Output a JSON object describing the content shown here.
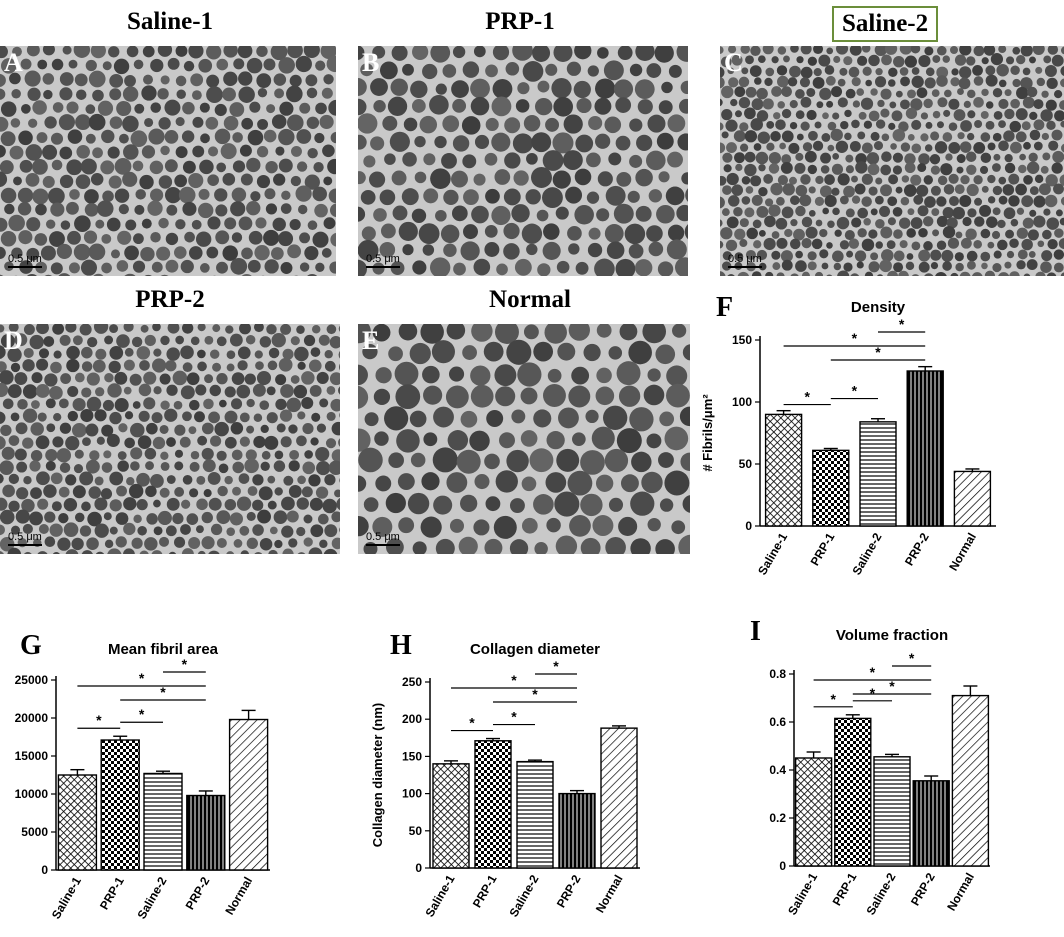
{
  "micrographs": [
    {
      "id": "A",
      "title": "Saline-1",
      "scale": "0.5 μm",
      "boxed": false
    },
    {
      "id": "B",
      "title": "PRP-1",
      "scale": "0.5 μm",
      "boxed": false
    },
    {
      "id": "C",
      "title": "Saline-2",
      "scale": "0.5 μm",
      "boxed": true
    },
    {
      "id": "D",
      "title": "PRP-2",
      "scale": "0.5 μm",
      "boxed": false
    },
    {
      "id": "E",
      "title": "Normal",
      "scale": "0.5 μm",
      "boxed": false
    }
  ],
  "chart_data": [
    {
      "panel": "F",
      "type": "bar",
      "title": "Density",
      "ylabel": "# Fibrils/μm²",
      "xlabel": "",
      "categories": [
        "Saline-1",
        "PRP-1",
        "Saline-2",
        "PRP-2",
        "Normal"
      ],
      "values": [
        90,
        61,
        84,
        125,
        44
      ],
      "errors": [
        3,
        1.5,
        2.5,
        3.5,
        2
      ],
      "ylim": [
        0,
        150
      ],
      "yticks": [
        0,
        50,
        100,
        150
      ],
      "significance": [
        {
          "from": "Saline-1",
          "to": "PRP-1",
          "label": "*"
        },
        {
          "from": "PRP-1",
          "to": "Saline-2",
          "label": "*"
        },
        {
          "from": "Saline-1",
          "to": "PRP-2",
          "label": "*"
        },
        {
          "from": "PRP-1",
          "to": "PRP-2",
          "label": "*"
        },
        {
          "from": "Saline-2",
          "to": "PRP-2",
          "label": "*"
        }
      ]
    },
    {
      "panel": "G",
      "type": "bar",
      "title": "Mean fibril area",
      "ylabel": "",
      "xlabel": "",
      "categories": [
        "Saline-1",
        "PRP-1",
        "Saline-2",
        "PRP-2",
        "Normal"
      ],
      "values": [
        12500,
        17100,
        12700,
        9800,
        19800
      ],
      "errors": [
        700,
        500,
        300,
        600,
        1200
      ],
      "ylim": [
        0,
        25000
      ],
      "yticks": [
        0,
        5000,
        10000,
        15000,
        20000,
        25000
      ],
      "significance": [
        {
          "from": "Saline-1",
          "to": "PRP-1",
          "label": "*"
        },
        {
          "from": "PRP-1",
          "to": "Saline-2",
          "label": "*"
        },
        {
          "from": "Saline-1",
          "to": "PRP-2",
          "label": "*"
        },
        {
          "from": "PRP-1",
          "to": "PRP-2",
          "label": "*"
        },
        {
          "from": "Saline-2",
          "to": "PRP-2",
          "label": "*"
        }
      ]
    },
    {
      "panel": "H",
      "type": "bar",
      "title": "Collagen diameter",
      "ylabel": "Collagen diameter (nm)",
      "xlabel": "",
      "categories": [
        "Saline-1",
        "PRP-1",
        "Saline-2",
        "PRP-2",
        "Normal"
      ],
      "values": [
        140,
        171,
        143,
        100,
        188
      ],
      "errors": [
        4,
        3,
        2,
        4,
        3
      ],
      "ylim": [
        0,
        250
      ],
      "yticks": [
        0,
        50,
        100,
        150,
        200,
        250
      ],
      "significance": [
        {
          "from": "Saline-1",
          "to": "PRP-1",
          "label": "*"
        },
        {
          "from": "PRP-1",
          "to": "Saline-2",
          "label": "*"
        },
        {
          "from": "Saline-1",
          "to": "PRP-2",
          "label": "*"
        },
        {
          "from": "PRP-1",
          "to": "PRP-2",
          "label": "*"
        },
        {
          "from": "Saline-2",
          "to": "PRP-2",
          "label": "*"
        }
      ]
    },
    {
      "panel": "I",
      "type": "bar",
      "title": "Volume fraction",
      "ylabel": "",
      "xlabel": "",
      "categories": [
        "Saline-1",
        "PRP-1",
        "Saline-2",
        "PRP-2",
        "Normal"
      ],
      "values": [
        0.45,
        0.615,
        0.455,
        0.355,
        0.71
      ],
      "errors": [
        0.025,
        0.015,
        0.01,
        0.02,
        0.04
      ],
      "ylim": [
        0,
        0.8
      ],
      "yticks": [
        0,
        0.2,
        0.4,
        0.6,
        0.8
      ],
      "significance": [
        {
          "from": "Saline-1",
          "to": "PRP-1",
          "label": "*"
        },
        {
          "from": "PRP-1",
          "to": "Saline-2",
          "label": "*"
        },
        {
          "from": "Saline-1",
          "to": "PRP-2",
          "label": "*"
        },
        {
          "from": "PRP-1",
          "to": "PRP-2",
          "label": "*"
        },
        {
          "from": "Saline-2",
          "to": "PRP-2",
          "label": "*"
        }
      ]
    }
  ]
}
